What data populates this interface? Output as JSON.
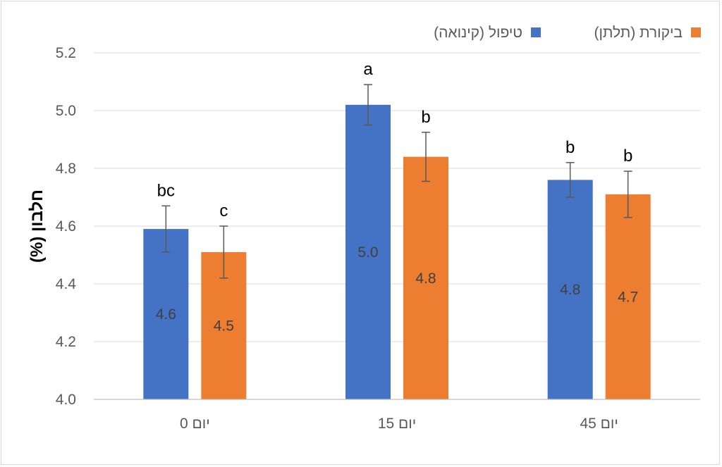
{
  "chart_data": {
    "type": "bar",
    "title": "",
    "xlabel": "",
    "ylabel": "חלבון (%)",
    "ylim": [
      4.0,
      5.2
    ],
    "ytick_step": 0.2,
    "yticks": [
      "4.0",
      "4.2",
      "4.4",
      "4.6",
      "4.8",
      "5.0",
      "5.2"
    ],
    "grid": true,
    "legend_position": "top-right",
    "categories": [
      "יום 0",
      "יום 15",
      "יום 45"
    ],
    "series": [
      {
        "name": "טיפול (קינואה)",
        "color": "#4472c4",
        "values": [
          4.59,
          5.02,
          4.76
        ],
        "value_labels": [
          "4.6",
          "5.0",
          "4.8"
        ],
        "error": [
          0.08,
          0.07,
          0.06
        ],
        "significance": [
          "bc",
          "a",
          "b"
        ]
      },
      {
        "name": "ביקורת (תלתן)",
        "color": "#ed7d31",
        "values": [
          4.51,
          4.84,
          4.71
        ],
        "value_labels": [
          "4.5",
          "4.8",
          "4.7"
        ],
        "error": [
          0.09,
          0.085,
          0.08
        ],
        "significance": [
          "c",
          "b",
          "b"
        ]
      }
    ]
  }
}
